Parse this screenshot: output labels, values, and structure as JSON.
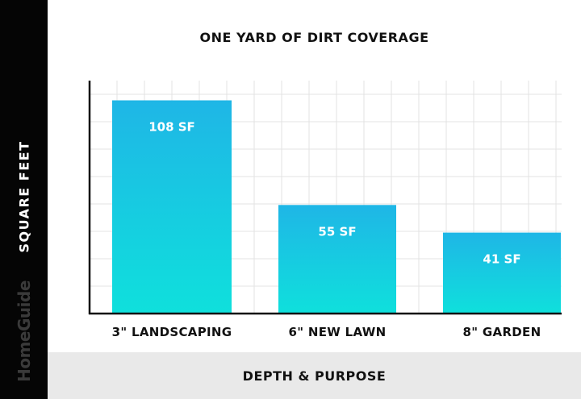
{
  "chart_data": {
    "type": "bar",
    "title": "ONE YARD OF DIRT COVERAGE",
    "xlabel": "DEPTH & PURPOSE",
    "ylabel": "SQUARE FEET",
    "categories": [
      "3\" LANDSCAPING",
      "6\" NEW LAWN",
      "8\" GARDEN"
    ],
    "values": [
      108,
      55,
      41
    ],
    "data_labels": [
      "108 SF",
      "55 SF",
      "41 SF"
    ],
    "ylim": [
      0,
      118
    ],
    "grid": true,
    "legend": "none",
    "colors": {
      "bar_top": "#1fb6e6",
      "bar_bottom": "#0fe0dc",
      "grid": "#e3e3e3",
      "axis": "#111111"
    }
  },
  "brand": "HomeGuide"
}
